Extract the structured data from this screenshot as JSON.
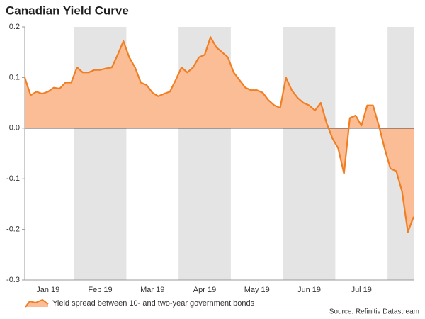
{
  "chart_data": {
    "type": "area-line",
    "title": "Canadian Yield Curve",
    "source": "Source: Refinitiv Datastream",
    "categories": [
      null,
      null,
      null,
      null,
      "Jan 19",
      null,
      null,
      null,
      null,
      null,
      null,
      null,
      null,
      "Feb 19",
      null,
      null,
      null,
      null,
      null,
      null,
      null,
      null,
      "Mar 19",
      null,
      null,
      null,
      null,
      null,
      null,
      null,
      null,
      "Apr 19",
      null,
      null,
      null,
      null,
      null,
      null,
      null,
      null,
      "May 19",
      null,
      null,
      null,
      null,
      null,
      null,
      null,
      null,
      "Jun 19",
      null,
      null,
      null,
      null,
      null,
      null,
      null,
      null,
      "Jul 19",
      null,
      null,
      null,
      null,
      null,
      null,
      null,
      null,
      null
    ],
    "series": [
      {
        "name": "Yield spread between 10- and two-year government bonds",
        "color": "#f07f24",
        "fill": "#fbbd96",
        "values": [
          0.1,
          0.065,
          0.072,
          0.068,
          0.072,
          0.08,
          0.078,
          0.09,
          0.09,
          0.12,
          0.11,
          0.11,
          0.115,
          0.115,
          0.118,
          0.12,
          0.145,
          0.172,
          0.14,
          0.12,
          0.09,
          0.085,
          0.07,
          0.063,
          0.068,
          0.072,
          0.095,
          0.12,
          0.11,
          0.12,
          0.14,
          0.145,
          0.18,
          0.16,
          0.15,
          0.14,
          0.11,
          0.095,
          0.08,
          0.075,
          0.075,
          0.07,
          0.055,
          0.045,
          0.04,
          0.1,
          0.075,
          0.06,
          0.05,
          0.045,
          0.035,
          0.05,
          0.01,
          -0.02,
          -0.04,
          -0.09,
          0.02,
          0.025,
          0.005,
          0.045,
          0.045,
          0.005,
          -0.04,
          -0.08,
          -0.085,
          -0.125,
          -0.205,
          -0.175
        ]
      }
    ],
    "ylim": [
      -0.3,
      0.2
    ],
    "yticks": [
      -0.3,
      -0.2,
      -0.1,
      {
        "value": 0,
        "label": "0.0"
      },
      0.1,
      0.2
    ],
    "zero_line": true
  }
}
